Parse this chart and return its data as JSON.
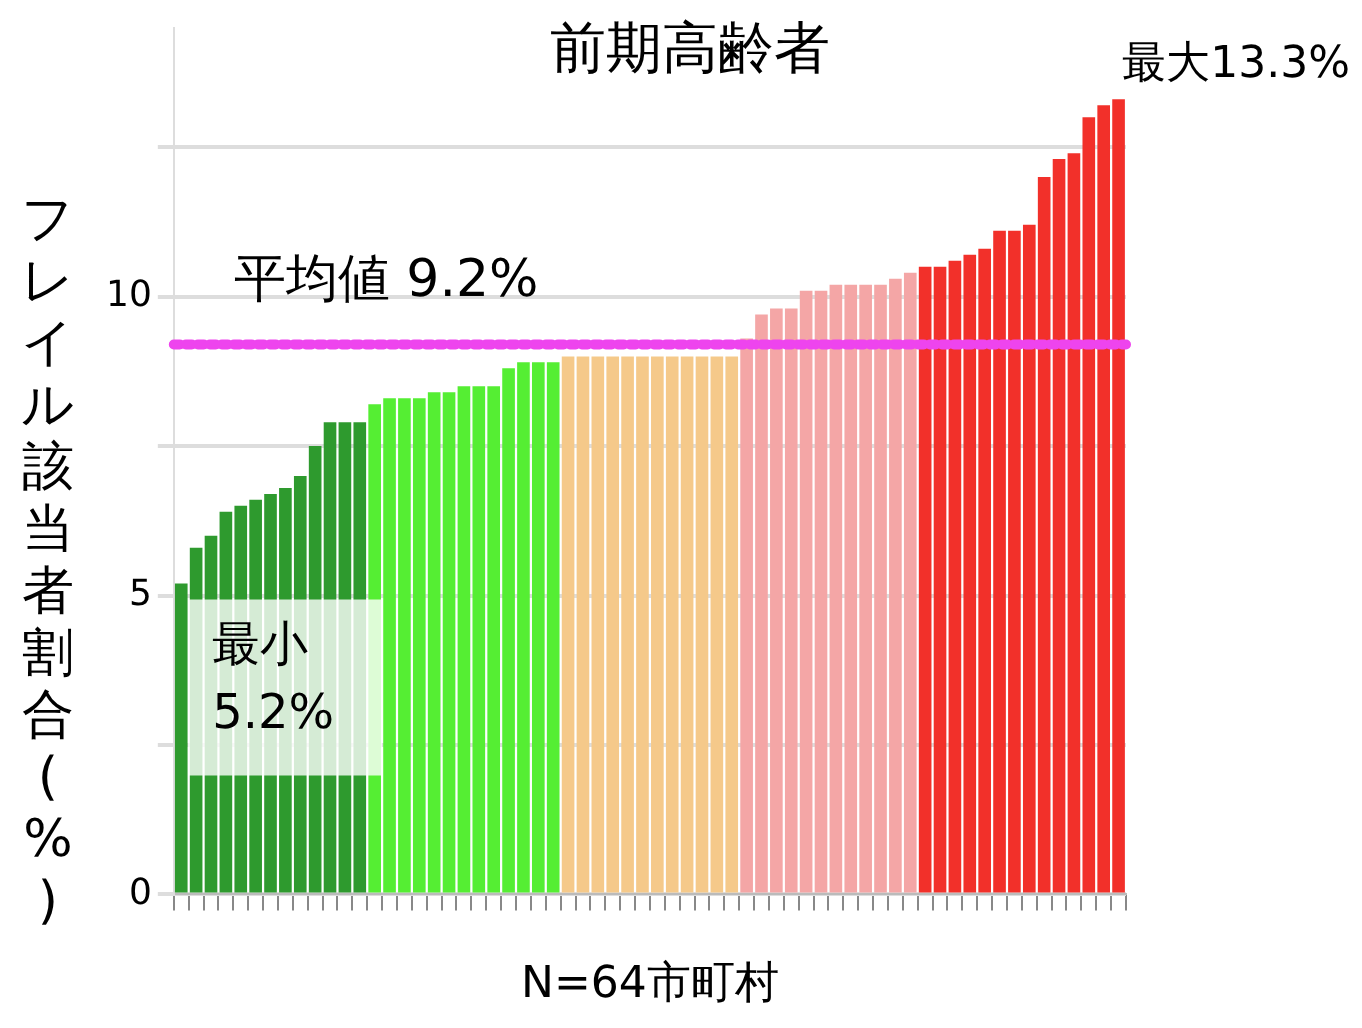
{
  "chart_data": {
    "type": "bar",
    "title": "前期高齢者",
    "xlabel": "N=64市町村",
    "ylabel": "フレイル該当者割合(%)",
    "categories": [
      null,
      null,
      null,
      null,
      null,
      null,
      null,
      null,
      null,
      null,
      null,
      null,
      null,
      null,
      null,
      null,
      null,
      null,
      null,
      null,
      null,
      null,
      null,
      null,
      null,
      null,
      null,
      null,
      null,
      null,
      null,
      null,
      null,
      null,
      null,
      null,
      null,
      null,
      null,
      null,
      null,
      null,
      null,
      null,
      null,
      null,
      null,
      null,
      null,
      null,
      null,
      null,
      null,
      null,
      null,
      null,
      null,
      null,
      null,
      null,
      null,
      null,
      null,
      null
    ],
    "values": [
      5.2,
      5.8,
      6.0,
      6.4,
      6.5,
      6.6,
      6.7,
      6.8,
      7.0,
      7.5,
      7.9,
      7.9,
      7.9,
      8.2,
      8.3,
      8.3,
      8.3,
      8.4,
      8.4,
      8.5,
      8.5,
      8.5,
      8.8,
      8.9,
      8.9,
      8.9,
      9.0,
      9.0,
      9.0,
      9.0,
      9.0,
      9.0,
      9.0,
      9.0,
      9.0,
      9.0,
      9.0,
      9.0,
      9.3,
      9.7,
      9.8,
      9.8,
      10.1,
      10.1,
      10.2,
      10.2,
      10.2,
      10.2,
      10.3,
      10.4,
      10.5,
      10.5,
      10.6,
      10.7,
      10.8,
      11.1,
      11.1,
      11.2,
      12.0,
      12.3,
      12.4,
      13.0,
      13.2,
      13.3
    ],
    "colors": [
      "#2e9a2e",
      "#2e9a2e",
      "#2e9a2e",
      "#2e9a2e",
      "#2e9a2e",
      "#2e9a2e",
      "#2e9a2e",
      "#2e9a2e",
      "#2e9a2e",
      "#2e9a2e",
      "#2e9a2e",
      "#2e9a2e",
      "#2e9a2e",
      "#55ee33",
      "#55ee33",
      "#55ee33",
      "#55ee33",
      "#55ee33",
      "#55ee33",
      "#55ee33",
      "#55ee33",
      "#55ee33",
      "#55ee33",
      "#55ee33",
      "#55ee33",
      "#55ee33",
      "#f5c98a",
      "#f5c98a",
      "#f5c98a",
      "#f5c98a",
      "#f5c98a",
      "#f5c98a",
      "#f5c98a",
      "#f5c98a",
      "#f5c98a",
      "#f5c98a",
      "#f5c98a",
      "#f5c98a",
      "#f4a6a6",
      "#f4a6a6",
      "#f4a6a6",
      "#f4a6a6",
      "#f4a6a6",
      "#f4a6a6",
      "#f4a6a6",
      "#f4a6a6",
      "#f4a6a6",
      "#f4a6a6",
      "#f4a6a6",
      "#f4a6a6",
      "#f2302a",
      "#f2302a",
      "#f2302a",
      "#f2302a",
      "#f2302a",
      "#f2302a",
      "#f2302a",
      "#f2302a",
      "#f2302a",
      "#f2302a",
      "#f2302a",
      "#f2302a",
      "#f2302a",
      "#f2302a"
    ],
    "ylim": [
      0,
      14.5
    ],
    "yticks": [
      0,
      {
        "value": 2.5,
        "label": null
      },
      5,
      {
        "value": 7.5,
        "label": null
      },
      10,
      {
        "value": 12.5,
        "label": null
      }
    ],
    "grid": "y",
    "ref_lines": [
      {
        "axis": "y",
        "value": 9.2,
        "label": "平均値 9.2%",
        "color": "#ee44ee",
        "line_style": "dotted"
      }
    ],
    "annotations": [
      "最大13.3%",
      "最小 5.2%"
    ]
  }
}
